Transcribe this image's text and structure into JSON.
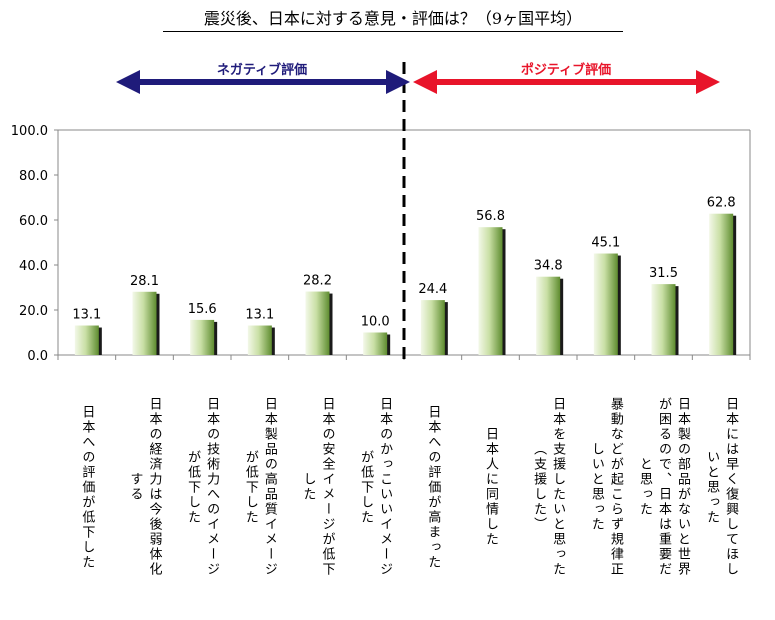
{
  "chart_data": {
    "type": "bar",
    "title": "震災後、日本に対する意見・評価は？（9ヶ国平均）",
    "categories": [
      "日本への評価が低下した",
      "日本の経済力は今後弱体化する",
      "日本の技術力へのイメージが低下した",
      "日本製品の高品質イメージが低下した",
      "日本の安全イメージが低下した",
      "日本のかっこいいイメージが低下した",
      "日本への評価が高まった",
      "日本人に同情した",
      "日本を支援したいと思った（支援した）",
      "暴動などが起こらず規律正しいと思った",
      "日本製の部品がないと世界が困るので、日本は重要だと思った",
      "日本には早く復興してほしいと思った"
    ],
    "category_lines": [
      [
        "日本への評価が低下した"
      ],
      [
        "日本の経済力は今後弱体化",
        "する"
      ],
      [
        "日本の技術力へのイメージ",
        "が低下した"
      ],
      [
        "日本製品の高品質イメージ",
        "が低下した"
      ],
      [
        "日本の安全イメージが低下",
        "した"
      ],
      [
        "日本のかっこいいイメージ",
        "が低下した"
      ],
      [
        "日本への評価が高まった"
      ],
      [
        "日本人に同情した"
      ],
      [
        "日本を支援したいと思った",
        "（支援した）"
      ],
      [
        "暴動などが起こらず規律正",
        "しいと思った"
      ],
      [
        "日本製の部品がないと世界",
        "が困るので、日本は重要だ",
        "と思った"
      ],
      [
        "日本には早く復興してほし",
        "いと思った"
      ]
    ],
    "values": [
      13.1,
      28.1,
      15.6,
      13.1,
      28.2,
      10.0,
      24.4,
      56.8,
      34.8,
      45.1,
      31.5,
      62.8
    ],
    "ylim": [
      0,
      100
    ],
    "yticks": [
      "0.0",
      "20.0",
      "40.0",
      "60.0",
      "80.0",
      "100.0"
    ],
    "grid": false,
    "annotations": {
      "negative": "ネガティブ評価",
      "positive": "ポジティブ評価"
    },
    "colors": {
      "negative_arrow": "#1f1b7a",
      "positive_arrow": "#e8142a",
      "bar_light": "#eef5e0",
      "bar_dark": "#5d8a2e",
      "bar_shadow": "#1a1a1a"
    }
  }
}
